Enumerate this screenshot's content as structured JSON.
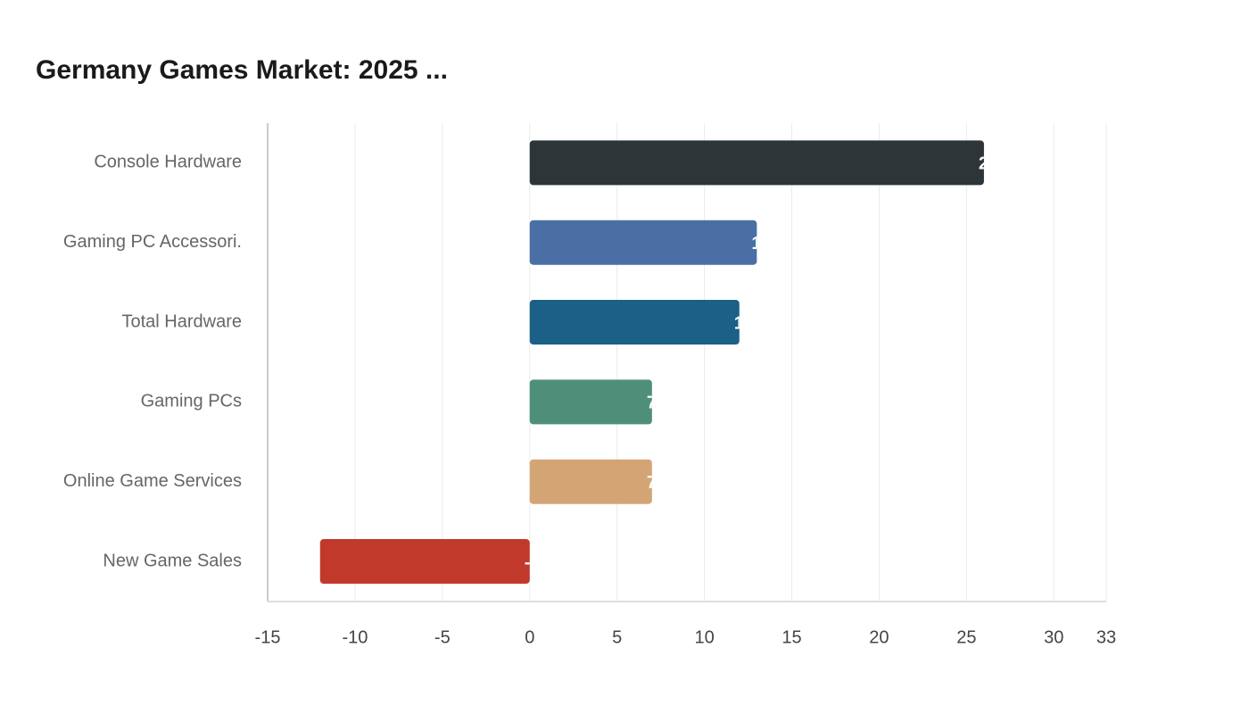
{
  "chart_data": {
    "type": "hbar",
    "title": "Germany Games Market: 2025 ...",
    "categories": [
      "Console Hardware",
      "Gaming PC Accessori.",
      "Total Hardware",
      "Gaming PCs",
      "Online Game Services",
      "New Game Sales"
    ],
    "values": [
      26,
      13,
      12,
      7,
      7,
      -12
    ],
    "colors": [
      "#2e3538",
      "#4a6fa5",
      "#1a6087",
      "#4f8f7a",
      "#d4a574",
      "#c0392b"
    ],
    "xlim": [
      -15,
      33
    ],
    "xticks": [
      -15,
      -10,
      -5,
      0,
      5,
      10,
      15,
      20,
      25,
      30,
      33
    ],
    "grid": true
  }
}
